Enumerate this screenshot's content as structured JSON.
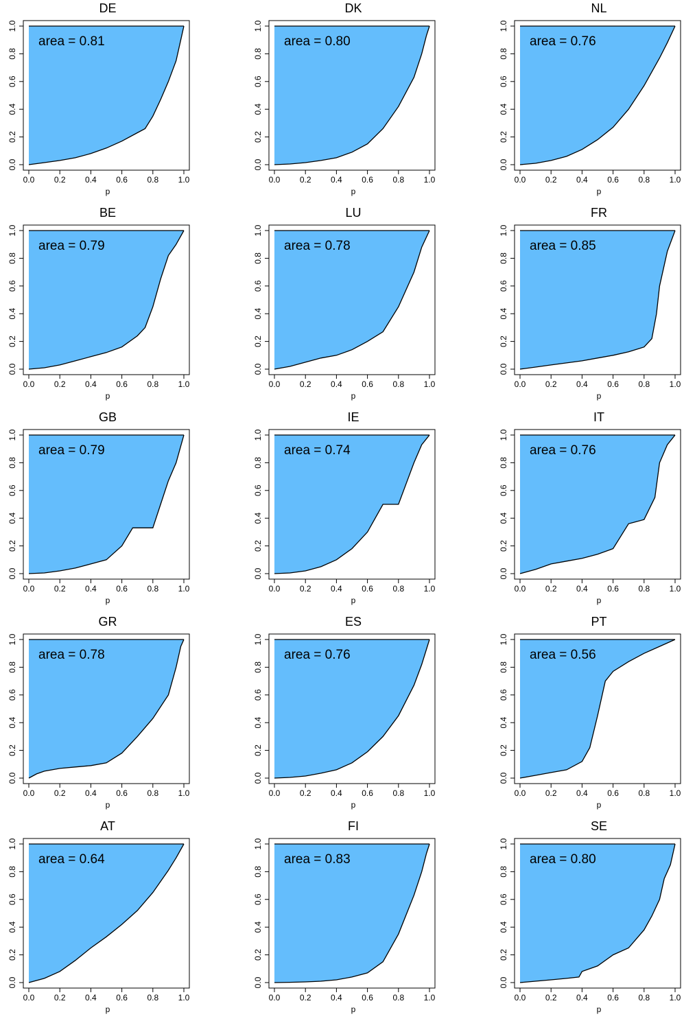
{
  "colors": {
    "fill": "#64bdfc",
    "line": "#000000"
  },
  "chart_data": [
    {
      "type": "area",
      "title": "DE",
      "xlabel": "p",
      "ylabel": "",
      "annotation": "area = 0.81",
      "xlim": [
        0,
        1
      ],
      "ylim": [
        0,
        1
      ],
      "xticks": [
        "0.0",
        "0.2",
        "0.4",
        "0.6",
        "0.8",
        "1.0"
      ],
      "yticks": [
        "0.0",
        "0.2",
        "0.4",
        "0.6",
        "0.8",
        "1.0"
      ],
      "points": [
        [
          0,
          0
        ],
        [
          0.1,
          0.015
        ],
        [
          0.2,
          0.03
        ],
        [
          0.3,
          0.05
        ],
        [
          0.4,
          0.08
        ],
        [
          0.5,
          0.12
        ],
        [
          0.6,
          0.17
        ],
        [
          0.7,
          0.23
        ],
        [
          0.75,
          0.26
        ],
        [
          0.8,
          0.35
        ],
        [
          0.85,
          0.47
        ],
        [
          0.9,
          0.6
        ],
        [
          0.95,
          0.75
        ],
        [
          0.98,
          0.9
        ],
        [
          1,
          1
        ]
      ]
    },
    {
      "type": "area",
      "title": "DK",
      "xlabel": "p",
      "ylabel": "",
      "annotation": "area = 0.80",
      "xlim": [
        0,
        1
      ],
      "ylim": [
        0,
        1
      ],
      "xticks": [
        "0.0",
        "0.2",
        "0.4",
        "0.6",
        "0.8",
        "1.0"
      ],
      "yticks": [
        "0.0",
        "0.2",
        "0.4",
        "0.6",
        "0.8",
        "1.0"
      ],
      "points": [
        [
          0,
          0
        ],
        [
          0.1,
          0.005
        ],
        [
          0.2,
          0.015
        ],
        [
          0.3,
          0.03
        ],
        [
          0.4,
          0.05
        ],
        [
          0.5,
          0.09
        ],
        [
          0.6,
          0.15
        ],
        [
          0.7,
          0.26
        ],
        [
          0.8,
          0.42
        ],
        [
          0.9,
          0.63
        ],
        [
          0.95,
          0.8
        ],
        [
          0.98,
          0.93
        ],
        [
          1,
          1
        ]
      ]
    },
    {
      "type": "area",
      "title": "NL",
      "xlabel": "p",
      "ylabel": "",
      "annotation": "area = 0.76",
      "xlim": [
        0,
        1
      ],
      "ylim": [
        0,
        1
      ],
      "xticks": [
        "0.0",
        "0.2",
        "0.4",
        "0.6",
        "0.8",
        "1.0"
      ],
      "yticks": [
        "0.0",
        "0.2",
        "0.4",
        "0.6",
        "0.8",
        "1.0"
      ],
      "points": [
        [
          0,
          0
        ],
        [
          0.1,
          0.01
        ],
        [
          0.2,
          0.03
        ],
        [
          0.3,
          0.06
        ],
        [
          0.4,
          0.11
        ],
        [
          0.5,
          0.18
        ],
        [
          0.6,
          0.27
        ],
        [
          0.7,
          0.4
        ],
        [
          0.8,
          0.57
        ],
        [
          0.9,
          0.77
        ],
        [
          0.95,
          0.88
        ],
        [
          1,
          1
        ]
      ]
    },
    {
      "type": "area",
      "title": "BE",
      "xlabel": "p",
      "ylabel": "",
      "annotation": "area = 0.79",
      "xlim": [
        0,
        1
      ],
      "ylim": [
        0,
        1
      ],
      "xticks": [
        "0.0",
        "0.2",
        "0.4",
        "0.6",
        "0.8",
        "1.0"
      ],
      "yticks": [
        "0.0",
        "0.2",
        "0.4",
        "0.6",
        "0.8",
        "1.0"
      ],
      "points": [
        [
          0,
          0
        ],
        [
          0.1,
          0.01
        ],
        [
          0.2,
          0.03
        ],
        [
          0.3,
          0.06
        ],
        [
          0.4,
          0.09
        ],
        [
          0.5,
          0.12
        ],
        [
          0.6,
          0.16
        ],
        [
          0.7,
          0.24
        ],
        [
          0.75,
          0.3
        ],
        [
          0.8,
          0.45
        ],
        [
          0.85,
          0.65
        ],
        [
          0.9,
          0.82
        ],
        [
          0.95,
          0.9
        ],
        [
          1,
          1
        ]
      ]
    },
    {
      "type": "area",
      "title": "LU",
      "xlabel": "p",
      "ylabel": "",
      "annotation": "area = 0.78",
      "xlim": [
        0,
        1
      ],
      "ylim": [
        0,
        1
      ],
      "xticks": [
        "0.0",
        "0.2",
        "0.4",
        "0.6",
        "0.8",
        "1.0"
      ],
      "yticks": [
        "0.0",
        "0.2",
        "0.4",
        "0.6",
        "0.8",
        "1.0"
      ],
      "points": [
        [
          0,
          0
        ],
        [
          0.1,
          0.02
        ],
        [
          0.2,
          0.05
        ],
        [
          0.3,
          0.08
        ],
        [
          0.4,
          0.1
        ],
        [
          0.5,
          0.14
        ],
        [
          0.6,
          0.2
        ],
        [
          0.7,
          0.27
        ],
        [
          0.8,
          0.45
        ],
        [
          0.9,
          0.7
        ],
        [
          0.95,
          0.88
        ],
        [
          1,
          1
        ]
      ]
    },
    {
      "type": "area",
      "title": "FR",
      "xlabel": "p",
      "ylabel": "",
      "annotation": "area = 0.85",
      "xlim": [
        0,
        1
      ],
      "ylim": [
        0,
        1
      ],
      "xticks": [
        "0.0",
        "0.2",
        "0.4",
        "0.6",
        "0.8",
        "1.0"
      ],
      "yticks": [
        "0.0",
        "0.2",
        "0.4",
        "0.6",
        "0.8",
        "1.0"
      ],
      "points": [
        [
          0,
          0
        ],
        [
          0.1,
          0.015
        ],
        [
          0.2,
          0.03
        ],
        [
          0.3,
          0.045
        ],
        [
          0.4,
          0.06
        ],
        [
          0.5,
          0.08
        ],
        [
          0.6,
          0.1
        ],
        [
          0.7,
          0.125
        ],
        [
          0.8,
          0.16
        ],
        [
          0.85,
          0.22
        ],
        [
          0.88,
          0.4
        ],
        [
          0.9,
          0.6
        ],
        [
          0.95,
          0.85
        ],
        [
          1,
          1
        ]
      ]
    },
    {
      "type": "area",
      "title": "GB",
      "xlabel": "p",
      "ylabel": "",
      "annotation": "area = 0.79",
      "xlim": [
        0,
        1
      ],
      "ylim": [
        0,
        1
      ],
      "xticks": [
        "0.0",
        "0.2",
        "0.4",
        "0.6",
        "0.8",
        "1.0"
      ],
      "yticks": [
        "0.0",
        "0.2",
        "0.4",
        "0.6",
        "0.8",
        "1.0"
      ],
      "points": [
        [
          0,
          0
        ],
        [
          0.1,
          0.005
        ],
        [
          0.2,
          0.02
        ],
        [
          0.3,
          0.04
        ],
        [
          0.4,
          0.07
        ],
        [
          0.5,
          0.1
        ],
        [
          0.6,
          0.2
        ],
        [
          0.67,
          0.33
        ],
        [
          0.8,
          0.33
        ],
        [
          0.85,
          0.5
        ],
        [
          0.9,
          0.67
        ],
        [
          0.95,
          0.8
        ],
        [
          1,
          1
        ]
      ]
    },
    {
      "type": "area",
      "title": "IE",
      "xlabel": "p",
      "ylabel": "",
      "annotation": "area = 0.74",
      "xlim": [
        0,
        1
      ],
      "ylim": [
        0,
        1
      ],
      "xticks": [
        "0.0",
        "0.2",
        "0.4",
        "0.6",
        "0.8",
        "1.0"
      ],
      "yticks": [
        "0.0",
        "0.2",
        "0.4",
        "0.6",
        "0.8",
        "1.0"
      ],
      "points": [
        [
          0,
          0
        ],
        [
          0.1,
          0.005
        ],
        [
          0.2,
          0.02
        ],
        [
          0.3,
          0.05
        ],
        [
          0.4,
          0.1
        ],
        [
          0.5,
          0.18
        ],
        [
          0.6,
          0.3
        ],
        [
          0.7,
          0.5
        ],
        [
          0.8,
          0.5
        ],
        [
          0.85,
          0.65
        ],
        [
          0.9,
          0.8
        ],
        [
          0.95,
          0.93
        ],
        [
          1,
          1
        ]
      ]
    },
    {
      "type": "area",
      "title": "IT",
      "xlabel": "p",
      "ylabel": "",
      "annotation": "area = 0.76",
      "xlim": [
        0,
        1
      ],
      "ylim": [
        0,
        1
      ],
      "xticks": [
        "0.0",
        "0.2",
        "0.4",
        "0.6",
        "0.8",
        "1.0"
      ],
      "yticks": [
        "0.0",
        "0.2",
        "0.4",
        "0.6",
        "0.8",
        "1.0"
      ],
      "points": [
        [
          0,
          0
        ],
        [
          0.1,
          0.03
        ],
        [
          0.2,
          0.07
        ],
        [
          0.3,
          0.09
        ],
        [
          0.4,
          0.11
        ],
        [
          0.5,
          0.14
        ],
        [
          0.6,
          0.18
        ],
        [
          0.7,
          0.36
        ],
        [
          0.8,
          0.39
        ],
        [
          0.87,
          0.55
        ],
        [
          0.9,
          0.8
        ],
        [
          0.95,
          0.93
        ],
        [
          1,
          1
        ]
      ]
    },
    {
      "type": "area",
      "title": "GR",
      "xlabel": "p",
      "ylabel": "",
      "annotation": "area = 0.78",
      "xlim": [
        0,
        1
      ],
      "ylim": [
        0,
        1
      ],
      "xticks": [
        "0.0",
        "0.2",
        "0.4",
        "0.6",
        "0.8",
        "1.0"
      ],
      "yticks": [
        "0.0",
        "0.2",
        "0.4",
        "0.6",
        "0.8",
        "1.0"
      ],
      "points": [
        [
          0,
          0
        ],
        [
          0.05,
          0.03
        ],
        [
          0.1,
          0.05
        ],
        [
          0.2,
          0.07
        ],
        [
          0.3,
          0.08
        ],
        [
          0.4,
          0.09
        ],
        [
          0.5,
          0.11
        ],
        [
          0.6,
          0.18
        ],
        [
          0.7,
          0.3
        ],
        [
          0.8,
          0.43
        ],
        [
          0.9,
          0.6
        ],
        [
          0.95,
          0.8
        ],
        [
          0.98,
          0.95
        ],
        [
          1,
          1
        ]
      ]
    },
    {
      "type": "area",
      "title": "ES",
      "xlabel": "p",
      "ylabel": "",
      "annotation": "area = 0.76",
      "xlim": [
        0,
        1
      ],
      "ylim": [
        0,
        1
      ],
      "xticks": [
        "0.0",
        "0.2",
        "0.4",
        "0.6",
        "0.8",
        "1.0"
      ],
      "yticks": [
        "0.0",
        "0.2",
        "0.4",
        "0.6",
        "0.8",
        "1.0"
      ],
      "points": [
        [
          0,
          0
        ],
        [
          0.1,
          0.005
        ],
        [
          0.2,
          0.015
        ],
        [
          0.3,
          0.035
        ],
        [
          0.4,
          0.06
        ],
        [
          0.5,
          0.11
        ],
        [
          0.6,
          0.19
        ],
        [
          0.7,
          0.3
        ],
        [
          0.8,
          0.45
        ],
        [
          0.9,
          0.67
        ],
        [
          0.95,
          0.82
        ],
        [
          1,
          1
        ]
      ]
    },
    {
      "type": "area",
      "title": "PT",
      "xlabel": "p",
      "ylabel": "",
      "annotation": "area = 0.56",
      "xlim": [
        0,
        1
      ],
      "ylim": [
        0,
        1
      ],
      "xticks": [
        "0.0",
        "0.2",
        "0.4",
        "0.6",
        "0.8",
        "1.0"
      ],
      "yticks": [
        "0.0",
        "0.2",
        "0.4",
        "0.6",
        "0.8",
        "1.0"
      ],
      "points": [
        [
          0,
          0
        ],
        [
          0.1,
          0.02
        ],
        [
          0.2,
          0.04
        ],
        [
          0.3,
          0.06
        ],
        [
          0.4,
          0.12
        ],
        [
          0.45,
          0.22
        ],
        [
          0.5,
          0.45
        ],
        [
          0.55,
          0.7
        ],
        [
          0.6,
          0.77
        ],
        [
          0.7,
          0.84
        ],
        [
          0.8,
          0.9
        ],
        [
          0.9,
          0.95
        ],
        [
          1,
          1
        ]
      ]
    },
    {
      "type": "area",
      "title": "AT",
      "xlabel": "p",
      "ylabel": "",
      "annotation": "area = 0.64",
      "xlim": [
        0,
        1
      ],
      "ylim": [
        0,
        1
      ],
      "xticks": [
        "0.0",
        "0.2",
        "0.4",
        "0.6",
        "0.8",
        "1.0"
      ],
      "yticks": [
        "0.0",
        "0.2",
        "0.4",
        "0.6",
        "0.8",
        "1.0"
      ],
      "points": [
        [
          0,
          0
        ],
        [
          0.1,
          0.03
        ],
        [
          0.2,
          0.08
        ],
        [
          0.3,
          0.16
        ],
        [
          0.4,
          0.25
        ],
        [
          0.5,
          0.33
        ],
        [
          0.6,
          0.42
        ],
        [
          0.7,
          0.52
        ],
        [
          0.8,
          0.65
        ],
        [
          0.9,
          0.81
        ],
        [
          0.95,
          0.9
        ],
        [
          1,
          1
        ]
      ]
    },
    {
      "type": "area",
      "title": "FI",
      "xlabel": "p",
      "ylabel": "",
      "annotation": "area = 0.83",
      "xlim": [
        0,
        1
      ],
      "ylim": [
        0,
        1
      ],
      "xticks": [
        "0.0",
        "0.2",
        "0.4",
        "0.6",
        "0.8",
        "1.0"
      ],
      "yticks": [
        "0.0",
        "0.2",
        "0.4",
        "0.6",
        "0.8",
        "1.0"
      ],
      "points": [
        [
          0,
          0
        ],
        [
          0.1,
          0.002
        ],
        [
          0.2,
          0.005
        ],
        [
          0.3,
          0.01
        ],
        [
          0.4,
          0.02
        ],
        [
          0.5,
          0.04
        ],
        [
          0.6,
          0.07
        ],
        [
          0.7,
          0.15
        ],
        [
          0.8,
          0.35
        ],
        [
          0.9,
          0.63
        ],
        [
          0.95,
          0.8
        ],
        [
          0.98,
          0.93
        ],
        [
          1,
          1
        ]
      ]
    },
    {
      "type": "area",
      "title": "SE",
      "xlabel": "p",
      "ylabel": "",
      "annotation": "area = 0.80",
      "xlim": [
        0,
        1
      ],
      "ylim": [
        0,
        1
      ],
      "xticks": [
        "0.0",
        "0.2",
        "0.4",
        "0.6",
        "0.8",
        "1.0"
      ],
      "yticks": [
        "0.0",
        "0.2",
        "0.4",
        "0.6",
        "0.8",
        "1.0"
      ],
      "points": [
        [
          0,
          0
        ],
        [
          0.1,
          0.01
        ],
        [
          0.2,
          0.02
        ],
        [
          0.3,
          0.03
        ],
        [
          0.38,
          0.04
        ],
        [
          0.4,
          0.08
        ],
        [
          0.5,
          0.12
        ],
        [
          0.6,
          0.2
        ],
        [
          0.7,
          0.25
        ],
        [
          0.8,
          0.38
        ],
        [
          0.85,
          0.48
        ],
        [
          0.9,
          0.6
        ],
        [
          0.93,
          0.75
        ],
        [
          0.97,
          0.85
        ],
        [
          1,
          1
        ]
      ]
    }
  ]
}
